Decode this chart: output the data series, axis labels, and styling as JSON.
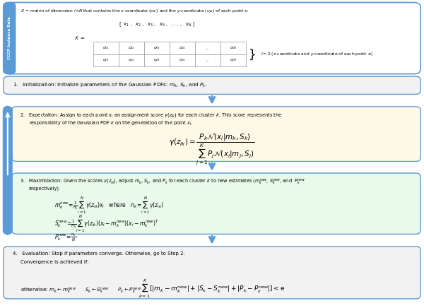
{
  "border_color": "#5b9bd5",
  "arrow_color": "#5b9bd5",
  "sidebar_bg": "#5b9bd5",
  "sidebar_text_color": "#ffffff",
  "box0_bg": "#ffffff",
  "box1_bg": "#f2f2f2",
  "box2_bg": "#fef9e7",
  "box3_bg": "#eafaea",
  "box4_bg": "#f2f2f2",
  "text_color": "#000000",
  "sidebar_label": "CCCP Instance Data",
  "box0_top_text": "X = matrix of dimension l×N that contains the x-coordinate (cx_i) and the y-coordinate (cy_i) of each point x_i",
  "box1_text": "1.   Initialization: Initialize parameters of the Gaussian PDFs: m_k, S_k, and P_k.",
  "step2_line1": "2.   Expectation: Assign to each point x_i an assignment score γ(z_ik) for each cluster k. This score represents the",
  "step2_line2": "responsibility of the Gaussian PDF k on the generation of the point x_i.",
  "step3_line1": "3.   Maximization: Given the scores γ(z_ik), adjust m_k, S_k, and P_k for each cluster k to new estimates (m_k^new, S_k^new, and  P_k^new",
  "step3_line2": "respectively)",
  "step4_line1": "4.   Evaluation: Stop if parameters converge. Otherwise, go to Step 2.",
  "step4_line2": "Convergence is achieved if:",
  "step4_otherwise": "otherwise: m_k ← m_k^new    S_k ← S_k^new    P_k ← P_k^new",
  "figw": 6.0,
  "figh": 4.36,
  "dpi": 100
}
